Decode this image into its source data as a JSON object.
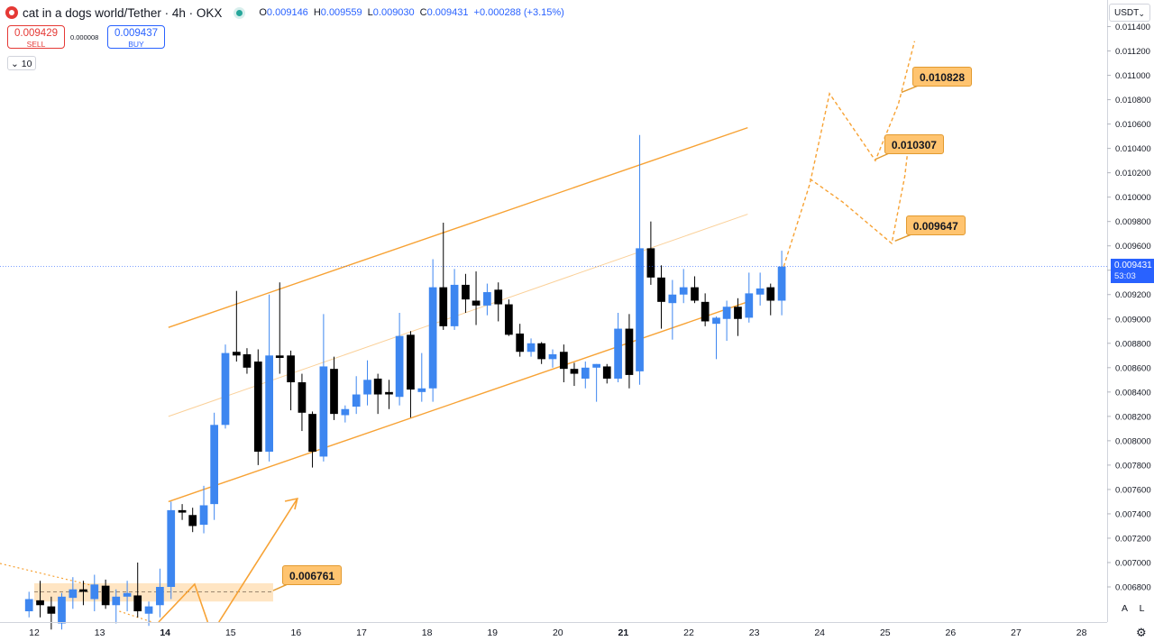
{
  "header": {
    "title": "cat in a dogs world/Tether · 4h · OKX",
    "open_label": "O",
    "open": "0.009146",
    "high_label": "H",
    "high": "0.009559",
    "low_label": "L",
    "low": "0.009030",
    "close_label": "C",
    "close": "0.009431",
    "change": "+0.000288 (+3.15%)"
  },
  "trade": {
    "sell_price": "0.009429",
    "sell_label": "SELL",
    "buy_price": "0.009437",
    "buy_label": "BUY",
    "spread": "0.000008",
    "lot_size": "10"
  },
  "currency": "USDT",
  "last_price": "0.009431",
  "countdown": "53:03",
  "corner_buttons": {
    "auto": "A",
    "log": "L"
  },
  "colors": {
    "bull": "#3d86f0",
    "bear": "#000000",
    "channel": "#f7a234",
    "zone": "#ffe0b8",
    "accent": "#2962ff"
  },
  "chart_data": {
    "type": "candlestick",
    "title": "cat in a dogs world/Tether · 4h · OKX",
    "ylim": [
      0.00657,
      0.01145
    ],
    "y_ticks": [
      "0.006800",
      "0.007000",
      "0.007200",
      "0.007400",
      "0.007600",
      "0.007800",
      "0.008000",
      "0.008200",
      "0.008400",
      "0.008600",
      "0.008800",
      "0.009000",
      "0.009200",
      "0.009400",
      "0.009600",
      "0.009800",
      "0.010000",
      "0.010200",
      "0.010400",
      "0.010600",
      "0.010800",
      "0.011000",
      "0.011200",
      "0.011400"
    ],
    "x_ticks": [
      {
        "label": "12",
        "day": 12
      },
      {
        "label": "13",
        "day": 13
      },
      {
        "label": "14",
        "day": 14
      },
      {
        "label": "15",
        "day": 15
      },
      {
        "label": "16",
        "day": 16
      },
      {
        "label": "17",
        "day": 17
      },
      {
        "label": "18",
        "day": 18
      },
      {
        "label": "19",
        "day": 19
      },
      {
        "label": "20",
        "day": 20
      },
      {
        "label": "21",
        "day": 21
      },
      {
        "label": "22",
        "day": 22
      },
      {
        "label": "23",
        "day": 23
      },
      {
        "label": "24",
        "day": 24
      },
      {
        "label": "25",
        "day": 25
      },
      {
        "label": "26",
        "day": 26
      },
      {
        "label": "27",
        "day": 27
      },
      {
        "label": "28",
        "day": 28
      }
    ],
    "bold_ticks": [
      "14",
      "21"
    ],
    "candle_period_days": 0.1667,
    "candles": [
      {
        "t": 11.92,
        "o": 0.0066,
        "h": 0.00676,
        "l": 0.00655,
        "c": 0.0067
      },
      {
        "t": 12.09,
        "o": 0.00669,
        "h": 0.00685,
        "l": 0.00655,
        "c": 0.00665
      },
      {
        "t": 12.26,
        "o": 0.00664,
        "h": 0.00672,
        "l": 0.00645,
        "c": 0.00658
      },
      {
        "t": 12.42,
        "o": 0.0065,
        "h": 0.00675,
        "l": 0.00645,
        "c": 0.00672
      },
      {
        "t": 12.59,
        "o": 0.00671,
        "h": 0.00688,
        "l": 0.00662,
        "c": 0.00678
      },
      {
        "t": 12.75,
        "o": 0.00678,
        "h": 0.00685,
        "l": 0.00665,
        "c": 0.00676
      },
      {
        "t": 12.92,
        "o": 0.0067,
        "h": 0.0069,
        "l": 0.0066,
        "c": 0.00682
      },
      {
        "t": 13.09,
        "o": 0.00681,
        "h": 0.00686,
        "l": 0.00662,
        "c": 0.00665
      },
      {
        "t": 13.25,
        "o": 0.00665,
        "h": 0.00678,
        "l": 0.0065,
        "c": 0.00672
      },
      {
        "t": 13.42,
        "o": 0.00672,
        "h": 0.00685,
        "l": 0.0066,
        "c": 0.00675
      },
      {
        "t": 13.58,
        "o": 0.00673,
        "h": 0.007,
        "l": 0.00655,
        "c": 0.0066
      },
      {
        "t": 13.75,
        "o": 0.00658,
        "h": 0.00668,
        "l": 0.00648,
        "c": 0.00664
      },
      {
        "t": 13.92,
        "o": 0.00665,
        "h": 0.00695,
        "l": 0.00655,
        "c": 0.0068
      },
      {
        "t": 14.09,
        "o": 0.0068,
        "h": 0.0075,
        "l": 0.0067,
        "c": 0.00743
      },
      {
        "t": 14.26,
        "o": 0.00743,
        "h": 0.00748,
        "l": 0.00735,
        "c": 0.00741
      },
      {
        "t": 14.42,
        "o": 0.00739,
        "h": 0.00745,
        "l": 0.00725,
        "c": 0.0073
      },
      {
        "t": 14.59,
        "o": 0.00731,
        "h": 0.00763,
        "l": 0.00724,
        "c": 0.00747
      },
      {
        "t": 14.75,
        "o": 0.00748,
        "h": 0.00823,
        "l": 0.00735,
        "c": 0.00813
      },
      {
        "t": 14.92,
        "o": 0.00813,
        "h": 0.00879,
        "l": 0.0081,
        "c": 0.00872
      },
      {
        "t": 15.09,
        "o": 0.00873,
        "h": 0.00923,
        "l": 0.00865,
        "c": 0.0087
      },
      {
        "t": 15.25,
        "o": 0.00871,
        "h": 0.00876,
        "l": 0.00855,
        "c": 0.0086
      },
      {
        "t": 15.42,
        "o": 0.00865,
        "h": 0.00875,
        "l": 0.0078,
        "c": 0.00791
      },
      {
        "t": 15.59,
        "o": 0.00791,
        "h": 0.0092,
        "l": 0.00783,
        "c": 0.0087
      },
      {
        "t": 15.75,
        "o": 0.0087,
        "h": 0.0093,
        "l": 0.00855,
        "c": 0.00868
      },
      {
        "t": 15.92,
        "o": 0.0087,
        "h": 0.00874,
        "l": 0.00825,
        "c": 0.00848
      },
      {
        "t": 16.09,
        "o": 0.00848,
        "h": 0.00855,
        "l": 0.00808,
        "c": 0.00823
      },
      {
        "t": 16.25,
        "o": 0.00822,
        "h": 0.00824,
        "l": 0.00778,
        "c": 0.00791
      },
      {
        "t": 16.42,
        "o": 0.00787,
        "h": 0.00904,
        "l": 0.00783,
        "c": 0.00861
      },
      {
        "t": 16.58,
        "o": 0.00859,
        "h": 0.00869,
        "l": 0.00817,
        "c": 0.00822
      },
      {
        "t": 16.75,
        "o": 0.00821,
        "h": 0.00829,
        "l": 0.00815,
        "c": 0.00826
      },
      {
        "t": 16.92,
        "o": 0.00828,
        "h": 0.00853,
        "l": 0.00822,
        "c": 0.00838
      },
      {
        "t": 17.09,
        "o": 0.00838,
        "h": 0.00866,
        "l": 0.00829,
        "c": 0.0085
      },
      {
        "t": 17.25,
        "o": 0.00851,
        "h": 0.00855,
        "l": 0.00822,
        "c": 0.00838
      },
      {
        "t": 17.42,
        "o": 0.0084,
        "h": 0.0085,
        "l": 0.00826,
        "c": 0.00838
      },
      {
        "t": 17.58,
        "o": 0.00836,
        "h": 0.00905,
        "l": 0.00829,
        "c": 0.00886
      },
      {
        "t": 17.75,
        "o": 0.00887,
        "h": 0.0089,
        "l": 0.00819,
        "c": 0.00842
      },
      {
        "t": 17.92,
        "o": 0.0084,
        "h": 0.00872,
        "l": 0.00832,
        "c": 0.00843
      },
      {
        "t": 18.09,
        "o": 0.00843,
        "h": 0.00949,
        "l": 0.00832,
        "c": 0.00926
      },
      {
        "t": 18.25,
        "o": 0.00926,
        "h": 0.00979,
        "l": 0.00891,
        "c": 0.00894
      },
      {
        "t": 18.42,
        "o": 0.00894,
        "h": 0.00941,
        "l": 0.00891,
        "c": 0.00928
      },
      {
        "t": 18.59,
        "o": 0.00928,
        "h": 0.00937,
        "l": 0.00905,
        "c": 0.00916
      },
      {
        "t": 18.75,
        "o": 0.00915,
        "h": 0.00939,
        "l": 0.00895,
        "c": 0.00911
      },
      {
        "t": 18.92,
        "o": 0.00911,
        "h": 0.00929,
        "l": 0.00903,
        "c": 0.00922
      },
      {
        "t": 19.09,
        "o": 0.00924,
        "h": 0.0093,
        "l": 0.00898,
        "c": 0.00912
      },
      {
        "t": 19.25,
        "o": 0.00912,
        "h": 0.00916,
        "l": 0.00886,
        "c": 0.00887
      },
      {
        "t": 19.42,
        "o": 0.00888,
        "h": 0.00896,
        "l": 0.00869,
        "c": 0.00873
      },
      {
        "t": 19.59,
        "o": 0.00873,
        "h": 0.00884,
        "l": 0.00869,
        "c": 0.0088
      },
      {
        "t": 19.75,
        "o": 0.0088,
        "h": 0.00881,
        "l": 0.00863,
        "c": 0.00867
      },
      {
        "t": 19.92,
        "o": 0.00867,
        "h": 0.00875,
        "l": 0.0086,
        "c": 0.00871
      },
      {
        "t": 20.09,
        "o": 0.00873,
        "h": 0.00879,
        "l": 0.00848,
        "c": 0.00859
      },
      {
        "t": 20.25,
        "o": 0.00859,
        "h": 0.00864,
        "l": 0.00845,
        "c": 0.00855
      },
      {
        "t": 20.42,
        "o": 0.00851,
        "h": 0.00865,
        "l": 0.00843,
        "c": 0.0086
      },
      {
        "t": 20.59,
        "o": 0.0086,
        "h": 0.00863,
        "l": 0.00832,
        "c": 0.00863
      },
      {
        "t": 20.75,
        "o": 0.00861,
        "h": 0.00863,
        "l": 0.00847,
        "c": 0.00851
      },
      {
        "t": 20.92,
        "o": 0.00851,
        "h": 0.00905,
        "l": 0.00848,
        "c": 0.00892
      },
      {
        "t": 21.09,
        "o": 0.00892,
        "h": 0.00904,
        "l": 0.00843,
        "c": 0.00854
      },
      {
        "t": 21.25,
        "o": 0.00857,
        "h": 0.01051,
        "l": 0.00846,
        "c": 0.00958
      },
      {
        "t": 21.42,
        "o": 0.00958,
        "h": 0.0098,
        "l": 0.00928,
        "c": 0.00934
      },
      {
        "t": 21.58,
        "o": 0.00934,
        "h": 0.00944,
        "l": 0.00892,
        "c": 0.00914
      },
      {
        "t": 21.75,
        "o": 0.00913,
        "h": 0.00932,
        "l": 0.00883,
        "c": 0.0092
      },
      {
        "t": 21.92,
        "o": 0.0092,
        "h": 0.00941,
        "l": 0.00913,
        "c": 0.00926
      },
      {
        "t": 22.09,
        "o": 0.00926,
        "h": 0.00935,
        "l": 0.00913,
        "c": 0.00915
      },
      {
        "t": 22.25,
        "o": 0.00914,
        "h": 0.00921,
        "l": 0.00894,
        "c": 0.00898
      },
      {
        "t": 22.42,
        "o": 0.00896,
        "h": 0.00902,
        "l": 0.00867,
        "c": 0.00901
      },
      {
        "t": 22.58,
        "o": 0.009,
        "h": 0.00915,
        "l": 0.00882,
        "c": 0.0091
      },
      {
        "t": 22.75,
        "o": 0.0091,
        "h": 0.00917,
        "l": 0.00886,
        "c": 0.009
      },
      {
        "t": 22.92,
        "o": 0.00901,
        "h": 0.00938,
        "l": 0.00897,
        "c": 0.00921
      },
      {
        "t": 23.09,
        "o": 0.0092,
        "h": 0.00938,
        "l": 0.00911,
        "c": 0.00925
      },
      {
        "t": 23.25,
        "o": 0.00926,
        "h": 0.00929,
        "l": 0.00903,
        "c": 0.00915
      },
      {
        "t": 23.42,
        "o": 0.00915,
        "h": 0.00956,
        "l": 0.00903,
        "c": 0.00943
      }
    ],
    "channel": {
      "upper": [
        [
          14.05,
          0.00893
        ],
        [
          22.9,
          0.01057
        ]
      ],
      "lower": [
        [
          14.05,
          0.0075
        ],
        [
          22.9,
          0.00914
        ]
      ],
      "mid": [
        [
          14.05,
          0.0082
        ],
        [
          22.9,
          0.00986
        ]
      ]
    },
    "projection": {
      "path_up": [
        [
          23.45,
          0.00943
        ],
        [
          23.85,
          0.01011
        ],
        [
          24.15,
          0.01085
        ],
        [
          24.85,
          0.0103
        ],
        [
          25.2,
          0.01076
        ],
        [
          25.45,
          0.01128
        ]
      ],
      "path_down": [
        [
          23.85,
          0.01015
        ],
        [
          24.35,
          0.00996
        ],
        [
          25.1,
          0.00962
        ],
        [
          25.3,
          0.01017
        ],
        [
          25.35,
          0.0104
        ]
      ]
    },
    "support_zone": {
      "from": 12.0,
      "to": 15.65,
      "low": 0.00668,
      "high": 0.00683,
      "mid": 0.00676
    },
    "price_line": 0.009431,
    "annotations": [
      {
        "label": "0.010828",
        "t": 25.25,
        "price": 0.01086
      },
      {
        "label": "0.010307",
        "t": 24.85,
        "price": 0.01031
      },
      {
        "label": "0.009647",
        "t": 25.15,
        "price": 0.00964
      },
      {
        "label": "0.006761",
        "t": 15.65,
        "price": 0.00677
      }
    ]
  }
}
